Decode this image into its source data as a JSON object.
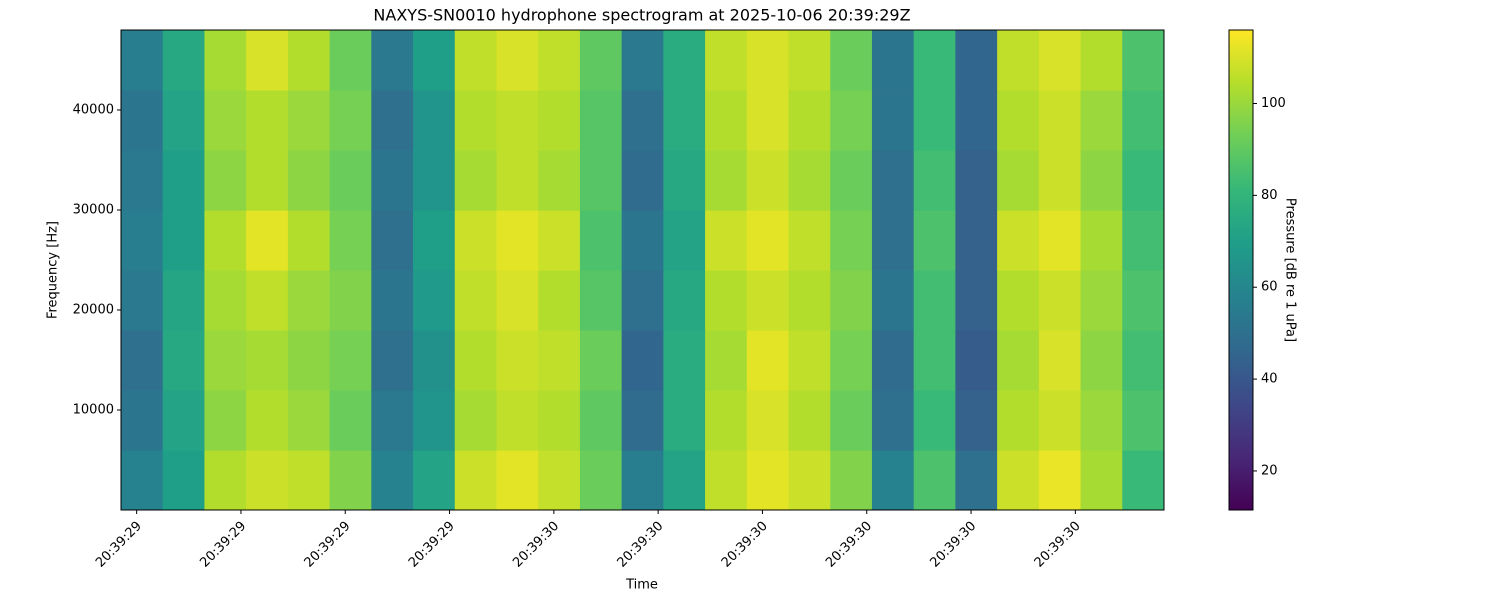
{
  "chart_data": {
    "type": "heatmap",
    "title": "NAXYS-SN0010 hydrophone spectrogram at 2025-10-06 20:39:29Z",
    "xlabel": "Time",
    "ylabel": "Frequency [Hz]",
    "colormap": "viridis",
    "x": [
      29.605,
      29.645,
      29.685,
      29.725,
      29.765,
      29.805,
      29.845,
      29.885,
      29.925,
      29.965,
      30.005,
      30.045,
      30.085,
      30.125,
      30.165,
      30.205,
      30.245,
      30.285,
      30.325,
      30.365,
      30.405,
      30.445,
      30.485,
      30.525,
      30.565
    ],
    "y": [
      3000,
      9000,
      15000,
      21000,
      27000,
      33000,
      39000,
      45000
    ],
    "z": [
      [
        58,
        70,
        104,
        108,
        106,
        96,
        58,
        72,
        108,
        112,
        107,
        92,
        56,
        72,
        106,
        112,
        108,
        96,
        58,
        86,
        50,
        108,
        113,
        102,
        82
      ],
      [
        52,
        72,
        98,
        104,
        100,
        92,
        54,
        66,
        102,
        106,
        104,
        90,
        48,
        76,
        104,
        110,
        104,
        92,
        50,
        82,
        44,
        104,
        108,
        100,
        86
      ],
      [
        50,
        74,
        100,
        102,
        98,
        94,
        50,
        64,
        104,
        108,
        106,
        92,
        46,
        76,
        102,
        112,
        106,
        94,
        48,
        84,
        42,
        102,
        110,
        98,
        84
      ],
      [
        54,
        73,
        102,
        106,
        100,
        96,
        52,
        68,
        106,
        110,
        104,
        88,
        50,
        74,
        104,
        108,
        104,
        96,
        52,
        84,
        44,
        104,
        108,
        100,
        86
      ],
      [
        56,
        70,
        104,
        112,
        104,
        94,
        50,
        70,
        108,
        112,
        108,
        86,
        52,
        72,
        108,
        112,
        106,
        94,
        50,
        86,
        44,
        108,
        112,
        102,
        84
      ],
      [
        54,
        70,
        98,
        104,
        98,
        92,
        52,
        66,
        102,
        106,
        102,
        88,
        48,
        74,
        102,
        108,
        102,
        92,
        50,
        84,
        44,
        102,
        108,
        98,
        82
      ],
      [
        52,
        72,
        100,
        104,
        100,
        94,
        50,
        66,
        104,
        106,
        104,
        88,
        50,
        76,
        104,
        110,
        104,
        94,
        52,
        82,
        46,
        104,
        108,
        100,
        84
      ],
      [
        56,
        74,
        102,
        110,
        104,
        92,
        54,
        70,
        106,
        110,
        106,
        90,
        54,
        76,
        106,
        110,
        106,
        92,
        52,
        82,
        46,
        106,
        110,
        104,
        86
      ]
    ],
    "xlim": [
      29.585,
      30.585
    ],
    "xticks": [
      {
        "value": 29.6,
        "label": "20:39:29"
      },
      {
        "value": 29.7,
        "label": "20:39:29"
      },
      {
        "value": 29.8,
        "label": "20:39:29"
      },
      {
        "value": 29.9,
        "label": "20:39:29"
      },
      {
        "value": 30.0,
        "label": "20:39:30"
      },
      {
        "value": 30.1,
        "label": "20:39:30"
      },
      {
        "value": 30.2,
        "label": "20:39:30"
      },
      {
        "value": 30.3,
        "label": "20:39:30"
      },
      {
        "value": 30.4,
        "label": "20:39:30"
      },
      {
        "value": 30.5,
        "label": "20:39:30"
      }
    ],
    "ylim": [
      0,
      48000
    ],
    "yticks": [
      10000,
      20000,
      30000,
      40000
    ],
    "colorbar": {
      "label": "Pressure [dB re 1 uPa]",
      "lim": [
        11.5,
        116
      ],
      "ticks": [
        20,
        40,
        60,
        80,
        100
      ]
    }
  }
}
